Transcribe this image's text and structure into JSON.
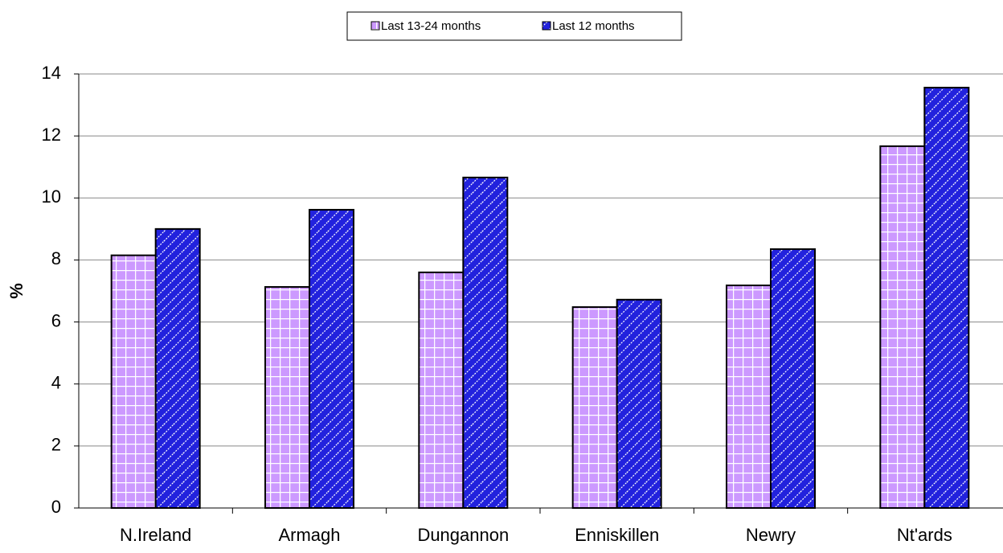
{
  "chart_data": {
    "type": "bar",
    "y_label": "%",
    "categories": [
      "N.Ireland",
      "Armagh",
      "Dungannon",
      "Enniskillen",
      "Newry",
      "Nt'ards"
    ],
    "series": [
      {
        "name": "Last 13-24 months",
        "color": "#cc99ff",
        "values": [
          8.15,
          7.13,
          7.6,
          6.48,
          7.18,
          11.67
        ]
      },
      {
        "name": "Last 12 months",
        "color": "#2222dd",
        "values": [
          9.0,
          9.62,
          10.66,
          6.72,
          8.35,
          13.56
        ]
      }
    ],
    "ylim": [
      0,
      14
    ],
    "yticks": [
      0,
      2,
      4,
      6,
      8,
      10,
      12,
      14
    ],
    "grid": true,
    "legend": "top"
  }
}
